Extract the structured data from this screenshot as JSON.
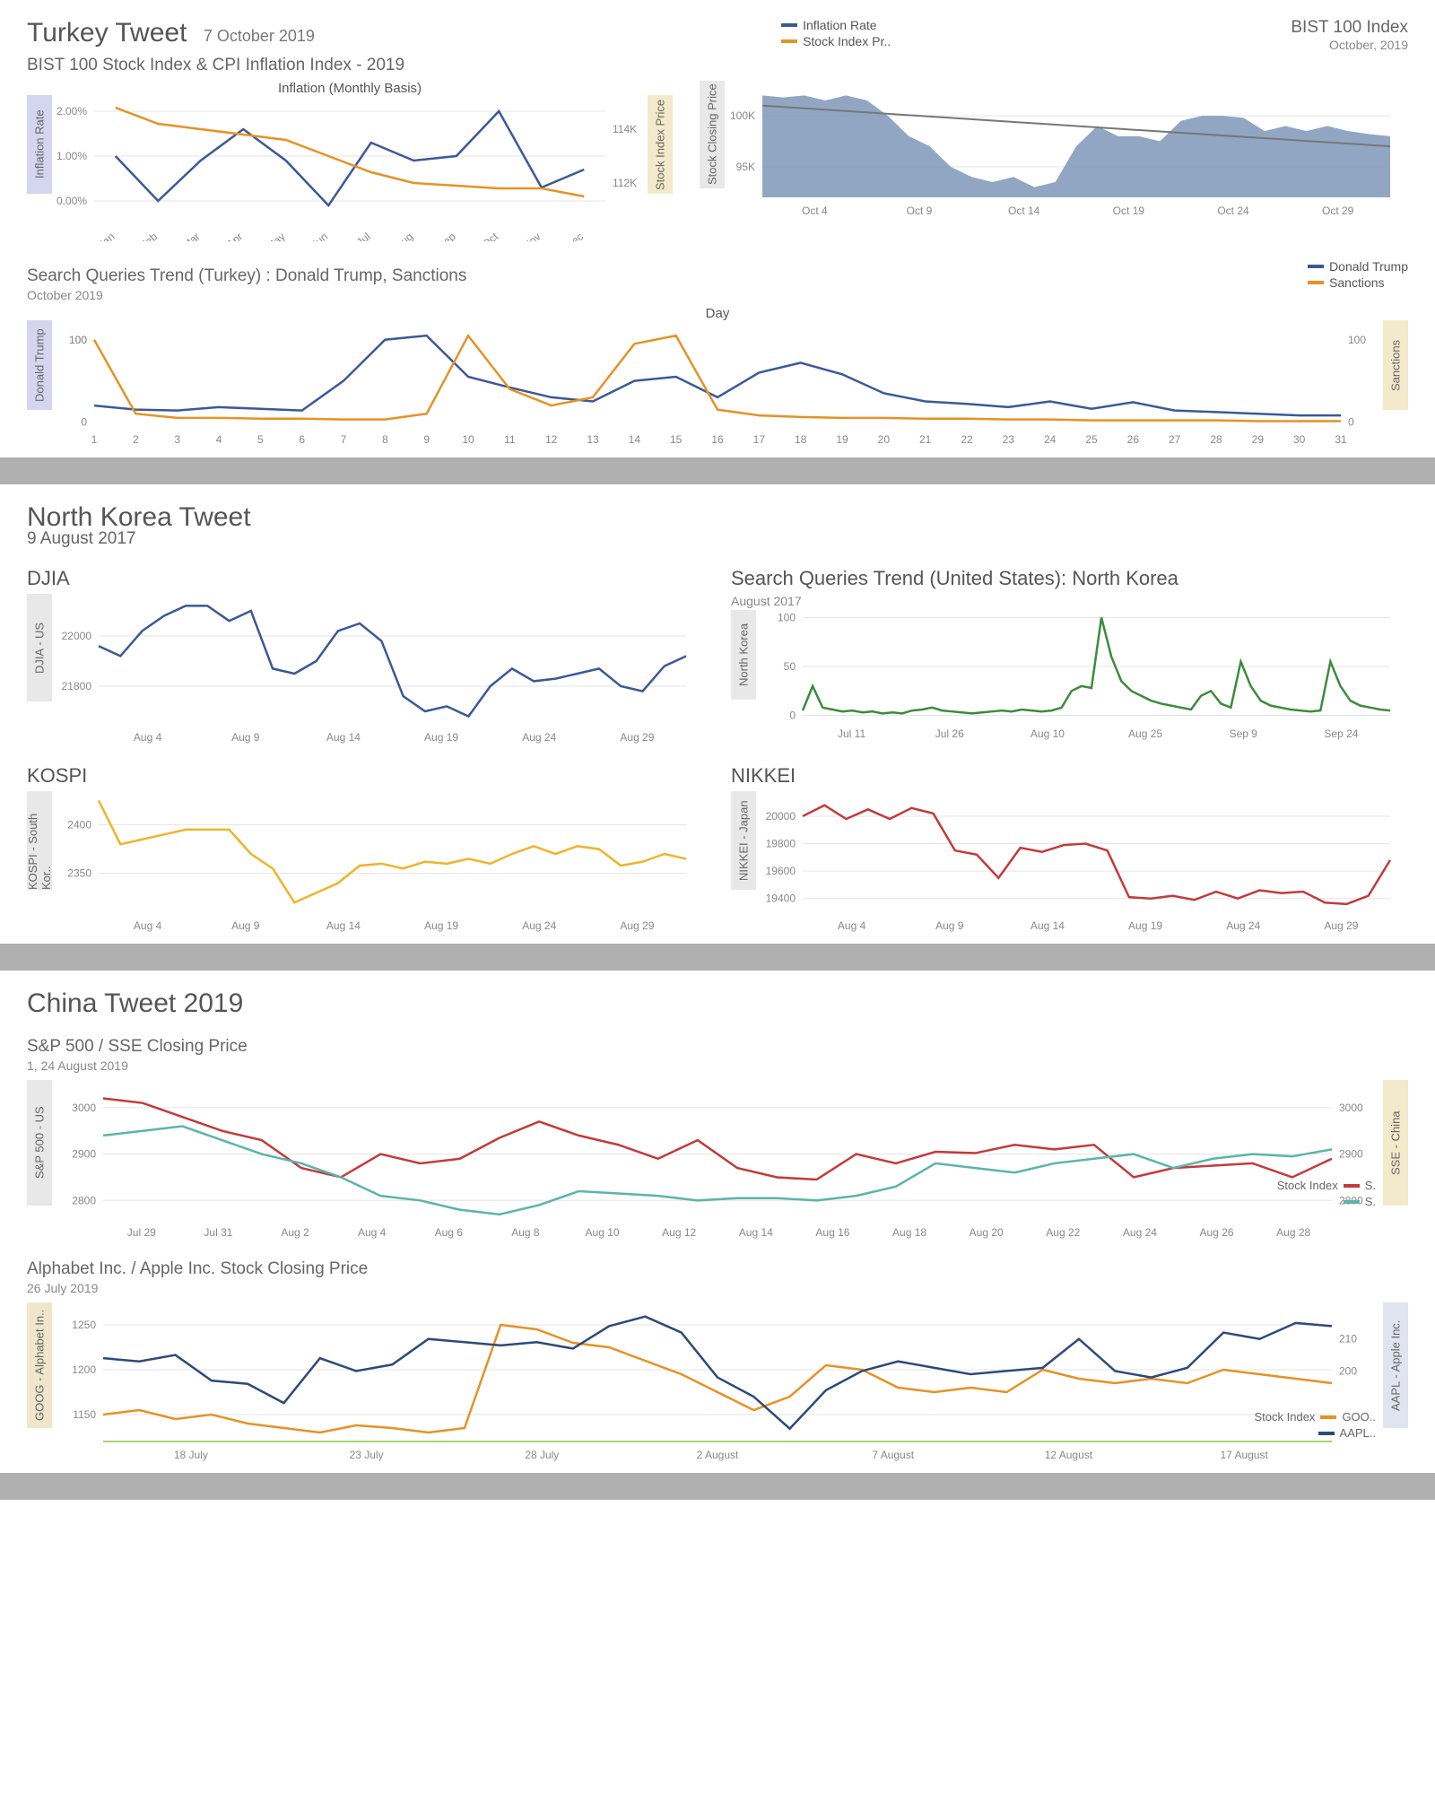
{
  "colors": {
    "blue": "#3b5998",
    "orange": "#e69225",
    "area_blue": "#7e96b8",
    "green": "#3d8b3d",
    "yellow": "#f0b429",
    "red": "#c23b3b",
    "teal": "#5bb5a8",
    "darkblue": "#2d4a7a",
    "grid": "#e5e5e5",
    "trendgray": "#777"
  },
  "turkey": {
    "title": "Turkey Tweet",
    "date": "7 October 2019",
    "subtitle": "BIST 100 Stock Index & CPI Inflation Index - 2019",
    "legend": [
      "Inflation Rate",
      "Stock Index Pr.."
    ],
    "inflation_chart": {
      "title": "Inflation (Monthly Basis)",
      "months": [
        "Jan",
        "Feb",
        "Mar",
        "Apr",
        "May",
        "Jun",
        "Jul",
        "Aug",
        "Sep",
        "Oct",
        "Nov",
        "Dec"
      ],
      "inflation_label": "Inflation Rate",
      "stock_label": "Stock Index Price",
      "y1_ticks": [
        "0.00%",
        "1.00%",
        "2.00%"
      ],
      "y2_ticks": [
        "112K",
        "114K"
      ],
      "inflation": [
        1.0,
        0.0,
        0.9,
        1.6,
        0.9,
        -0.1,
        1.3,
        0.9,
        1.0,
        2.0,
        0.3,
        0.7
      ],
      "stock": [
        114.8,
        114.2,
        114.0,
        113.8,
        113.6,
        113.0,
        112.4,
        112.0,
        111.9,
        111.8,
        111.8,
        111.5
      ]
    },
    "bist_area": {
      "title": "BIST 100 Index",
      "sub": "October, 2019",
      "ylabel": "Stock Closing Price",
      "yticks": [
        "95K",
        "100K"
      ],
      "xticks": [
        "Oct 4",
        "Oct 9",
        "Oct 14",
        "Oct 19",
        "Oct 24",
        "Oct 29"
      ],
      "values": [
        102,
        101.8,
        102,
        101.5,
        102,
        101.5,
        100,
        98,
        97,
        95,
        94,
        93.5,
        94,
        93,
        93.5,
        97,
        99,
        98,
        98,
        97.5,
        99.5,
        100,
        100,
        99.8,
        98.5,
        99,
        98.5,
        99,
        98.5,
        98.2,
        98
      ]
    },
    "search": {
      "title": "Search Queries Trend (Turkey) : Donald Trump, Sanctions",
      "sub": "October 2019",
      "legend": [
        "Donald Trump",
        "Sanctions"
      ],
      "xlabel": "Day",
      "days": [
        "1",
        "2",
        "3",
        "4",
        "5",
        "6",
        "7",
        "8",
        "9",
        "10",
        "11",
        "12",
        "13",
        "14",
        "15",
        "16",
        "17",
        "18",
        "19",
        "20",
        "21",
        "22",
        "23",
        "24",
        "25",
        "26",
        "27",
        "28",
        "29",
        "30",
        "31"
      ],
      "y1label": "Donald Trump",
      "y2label": "Sanctions",
      "y2ticks": [
        "0",
        "100"
      ],
      "trump": [
        20,
        15,
        14,
        18,
        16,
        14,
        50,
        100,
        105,
        55,
        42,
        30,
        25,
        50,
        55,
        30,
        60,
        72,
        58,
        35,
        25,
        22,
        18,
        25,
        16,
        24,
        14,
        12,
        10,
        8,
        8
      ],
      "sanctions": [
        100,
        10,
        5,
        5,
        4,
        4,
        3,
        3,
        10,
        105,
        40,
        20,
        30,
        95,
        105,
        15,
        8,
        6,
        5,
        5,
        4,
        4,
        3,
        3,
        2,
        2,
        2,
        2,
        1,
        1,
        1
      ]
    }
  },
  "nk": {
    "title": "North Korea Tweet",
    "date": "9 August 2017",
    "djia": {
      "title": "DJIA",
      "ylabel": "DJIA - US",
      "yticks": [
        "21800",
        "22000"
      ],
      "xticks": [
        "Aug 4",
        "Aug 9",
        "Aug 14",
        "Aug 19",
        "Aug 24",
        "Aug 29"
      ],
      "values": [
        21960,
        21920,
        22020,
        22080,
        22120,
        22120,
        22060,
        22100,
        21870,
        21850,
        21900,
        22020,
        22050,
        21980,
        21760,
        21700,
        21720,
        21680,
        21800,
        21870,
        21820,
        21830,
        21850,
        21870,
        21800,
        21780,
        21880,
        21920
      ]
    },
    "search_nk": {
      "title": "Search Queries Trend (United States): North Korea",
      "sub": "August 2017",
      "ylabel": "North Korea",
      "yticks": [
        "0",
        "50",
        "100"
      ],
      "xticks": [
        "Jul 11",
        "Jul 26",
        "Aug 10",
        "Aug 25",
        "Sep 9",
        "Sep 24"
      ],
      "values": [
        5,
        30,
        8,
        6,
        4,
        5,
        3,
        4,
        2,
        3,
        2,
        5,
        6,
        8,
        5,
        4,
        3,
        2,
        3,
        4,
        5,
        4,
        6,
        5,
        4,
        5,
        8,
        25,
        30,
        28,
        100,
        60,
        35,
        25,
        20,
        15,
        12,
        10,
        8,
        6,
        20,
        25,
        12,
        8,
        55,
        30,
        15,
        10,
        8,
        6,
        5,
        4,
        5,
        55,
        30,
        15,
        10,
        8,
        6,
        5
      ]
    },
    "kospi": {
      "title": "KOSPI",
      "ylabel": "KOSPI - South Kor..",
      "yticks": [
        "2350",
        "2400"
      ],
      "xticks": [
        "Aug 4",
        "Aug 9",
        "Aug 14",
        "Aug 19",
        "Aug 24",
        "Aug 29"
      ],
      "values": [
        2425,
        2380,
        2385,
        2390,
        2395,
        2395,
        2395,
        2370,
        2355,
        2320,
        2330,
        2340,
        2358,
        2360,
        2355,
        2362,
        2360,
        2365,
        2360,
        2370,
        2378,
        2370,
        2378,
        2375,
        2358,
        2362,
        2370,
        2365
      ]
    },
    "nikkei": {
      "title": "NIKKEI",
      "ylabel": "NIKKEI - Japan",
      "yticks": [
        "19400",
        "19600",
        "19800",
        "20000"
      ],
      "xticks": [
        "Aug 4",
        "Aug 9",
        "Aug 14",
        "Aug 19",
        "Aug 24",
        "Aug 29"
      ],
      "values": [
        20000,
        20080,
        19980,
        20050,
        19980,
        20060,
        20020,
        19750,
        19720,
        19550,
        19770,
        19740,
        19790,
        19800,
        19750,
        19410,
        19400,
        19420,
        19390,
        19450,
        19400,
        19460,
        19440,
        19450,
        19370,
        19360,
        19420,
        19680
      ]
    }
  },
  "china": {
    "title": "China Tweet 2019",
    "spsse": {
      "title": "S&P 500 / SSE Closing Price",
      "sub": "1, 24 August 2019",
      "y1label": "S&P 500 - US",
      "y2label": "SSE - China",
      "y1ticks": [
        "2800",
        "2900",
        "3000"
      ],
      "y2ticks": [
        "2800",
        "2900",
        "3000"
      ],
      "xticks": [
        "Jul 29",
        "Jul 31",
        "Aug 2",
        "Aug 4",
        "Aug 6",
        "Aug 8",
        "Aug 10",
        "Aug 12",
        "Aug 14",
        "Aug 16",
        "Aug 18",
        "Aug 20",
        "Aug 22",
        "Aug 24",
        "Aug 26",
        "Aug 28"
      ],
      "legend_label": "Stock Index",
      "legend": [
        "S.",
        "S."
      ],
      "sp500": [
        3020,
        3010,
        2980,
        2950,
        2930,
        2870,
        2850,
        2900,
        2880,
        2890,
        2935,
        2970,
        2940,
        2920,
        2890,
        2930,
        2870,
        2850,
        2845,
        2900,
        2880,
        2905,
        2902,
        2920,
        2910,
        2920,
        2850,
        2870,
        2875,
        2880,
        2850,
        2890
      ],
      "sse": [
        2940,
        2950,
        2960,
        2930,
        2900,
        2880,
        2850,
        2810,
        2800,
        2780,
        2770,
        2790,
        2820,
        2815,
        2810,
        2800,
        2805,
        2805,
        2800,
        2810,
        2830,
        2880,
        2870,
        2860,
        2880,
        2890,
        2900,
        2870,
        2890,
        2900,
        2895,
        2910
      ]
    },
    "stocks": {
      "title": "Alphabet Inc. / Apple Inc. Stock Closing Price",
      "sub": "26 July 2019",
      "y1label": "GOOG - Alphabet In..",
      "y2label": "AAPL - Apple Inc.",
      "y1ticks": [
        "1150",
        "1200",
        "1250"
      ],
      "y2ticks": [
        "200",
        "210"
      ],
      "xticks": [
        "18 July",
        "23 July",
        "28 July",
        "2 August",
        "7 August",
        "12 August",
        "17 August"
      ],
      "legend_label": "Stock Index",
      "legend": [
        "GOO..",
        "AAPL.."
      ],
      "goog": [
        1150,
        1155,
        1145,
        1150,
        1140,
        1135,
        1130,
        1138,
        1135,
        1130,
        1135,
        1250,
        1245,
        1230,
        1225,
        1210,
        1195,
        1175,
        1155,
        1170,
        1205,
        1200,
        1180,
        1175,
        1180,
        1175,
        1200,
        1190,
        1185,
        1190,
        1185,
        1200,
        1195,
        1190,
        1185
      ],
      "aapl": [
        204,
        203,
        205,
        197,
        196,
        190,
        204,
        200,
        202,
        210,
        209,
        208,
        209,
        207,
        214,
        217,
        212,
        198,
        192,
        182,
        194,
        200,
        203,
        201,
        199,
        200,
        201,
        210,
        200,
        198,
        201,
        212,
        210,
        215,
        214
      ]
    }
  }
}
